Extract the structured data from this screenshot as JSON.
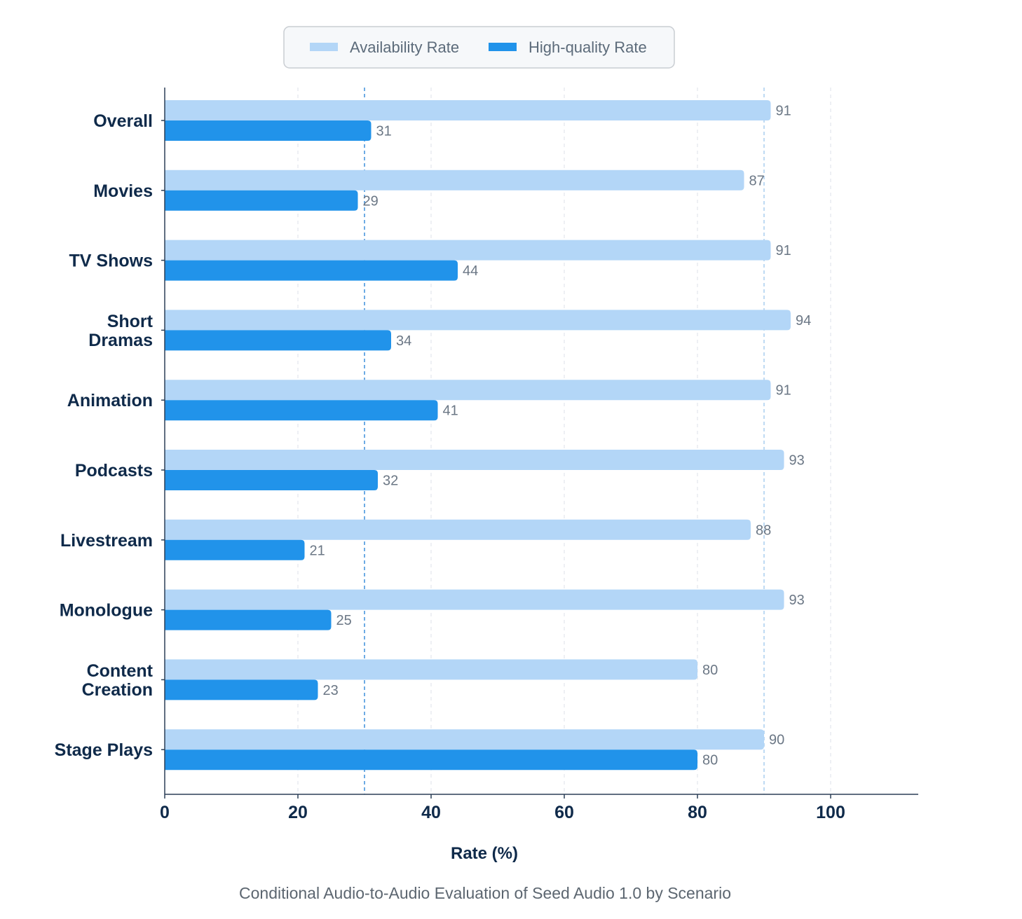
{
  "chart_data": {
    "type": "bar",
    "orientation": "horizontal",
    "categories": [
      [
        "Overall"
      ],
      [
        "Movies"
      ],
      [
        "TV Shows"
      ],
      [
        "Short",
        "Dramas"
      ],
      [
        "Animation"
      ],
      [
        "Podcasts"
      ],
      [
        "Livestream"
      ],
      [
        "Monologue"
      ],
      [
        "Content",
        "Creation"
      ],
      [
        "Stage Plays"
      ]
    ],
    "series": [
      {
        "name": "Availability Rate",
        "color": "#b3d6f7",
        "values": [
          91,
          87,
          91,
          94,
          91,
          93,
          88,
          93,
          80,
          90
        ]
      },
      {
        "name": "High-quality Rate",
        "color": "#2193ea",
        "values": [
          31,
          29,
          44,
          34,
          41,
          32,
          21,
          25,
          23,
          80
        ]
      }
    ],
    "xlabel": "Rate (%)",
    "ylabel": "",
    "xlim": [
      0,
      113
    ],
    "xticks": [
      0,
      20,
      40,
      60,
      80,
      100
    ],
    "reference_lines": [
      30,
      90
    ],
    "grid": true,
    "legend_position": "top-center"
  },
  "caption": "Conditional Audio-to-Audio Evaluation of Seed Audio 1.0 by Scenario"
}
